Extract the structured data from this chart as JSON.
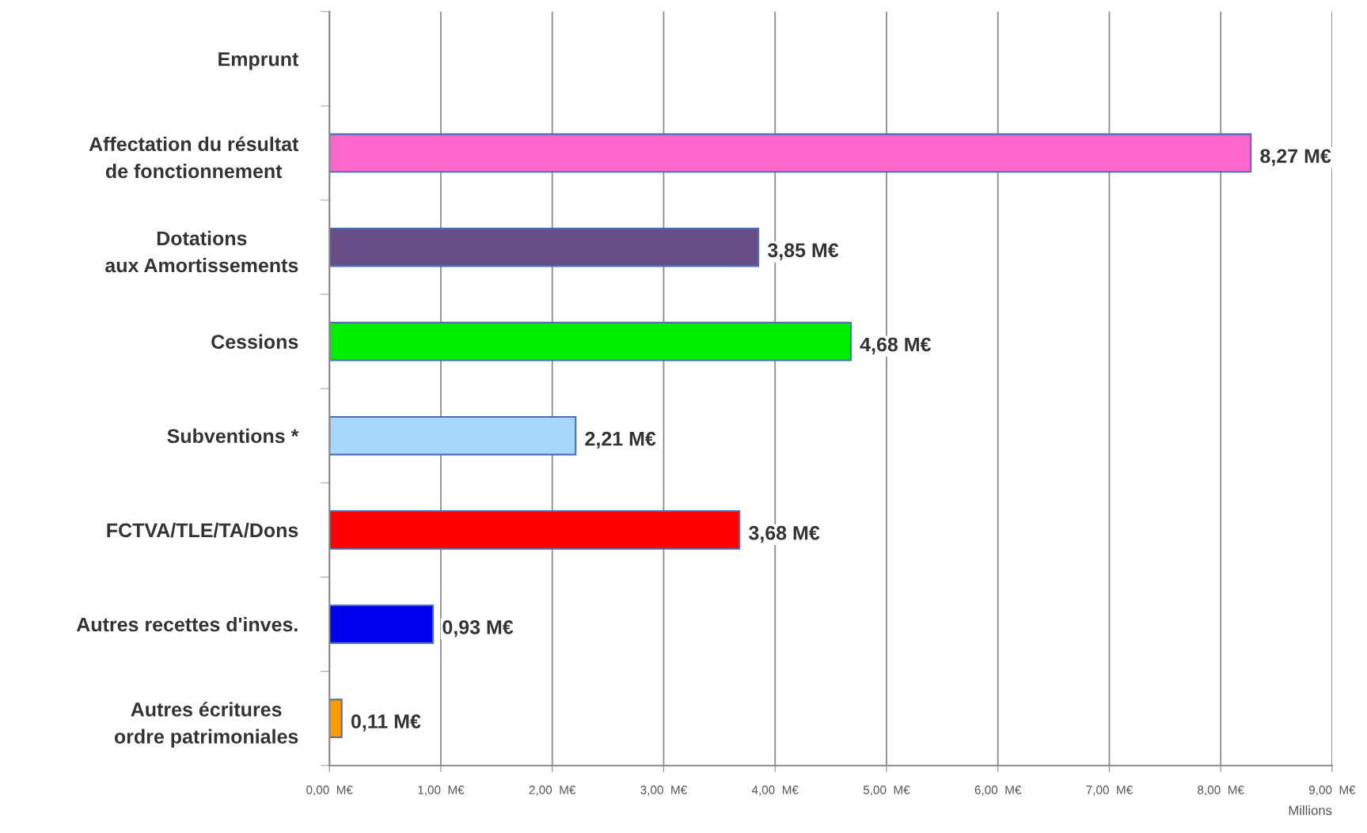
{
  "chart_data": {
    "type": "bar",
    "orientation": "horizontal",
    "categories": [
      "Emprunt",
      "Affectation du résultat\nde fonctionnement",
      "Dotations\naux Amortissements",
      "Cessions",
      "Subventions *",
      "FCTVA/TLE/TA/Dons",
      "Autres recettes d'inves.",
      "Autres écritures\nordre patrimoniales"
    ],
    "values": [
      null,
      8.27,
      3.85,
      4.68,
      2.21,
      3.68,
      0.93,
      0.11
    ],
    "colors": [
      "#ffffff",
      "#ff66cc",
      "#674e86",
      "#00ee00",
      "#a6d6fa",
      "#ff0000",
      "#0000ee",
      "#ff9a00"
    ],
    "value_labels": [
      null,
      "8,27 M€",
      "3,85 M€",
      "4,68 M€",
      "2,21 M€",
      "3,68 M€",
      "0,93 M€",
      "0,11 M€"
    ],
    "xlabel": "Millions",
    "xlim": [
      0,
      9
    ],
    "xticks": [
      {
        "value": 0,
        "label": "0,00  M€"
      },
      {
        "value": 1,
        "label": "1,00  M€"
      },
      {
        "value": 2,
        "label": "2,00  M€"
      },
      {
        "value": 3,
        "label": "3,00  M€"
      },
      {
        "value": 4,
        "label": "4,00  M€"
      },
      {
        "value": 5,
        "label": "5,00  M€"
      },
      {
        "value": 6,
        "label": "6,00  M€"
      },
      {
        "value": 7,
        "label": "7,00  M€"
      },
      {
        "value": 8,
        "label": "8,00  M€"
      },
      {
        "value": 9,
        "label": "9,00  M€"
      }
    ],
    "grid": "x",
    "legend": false
  }
}
